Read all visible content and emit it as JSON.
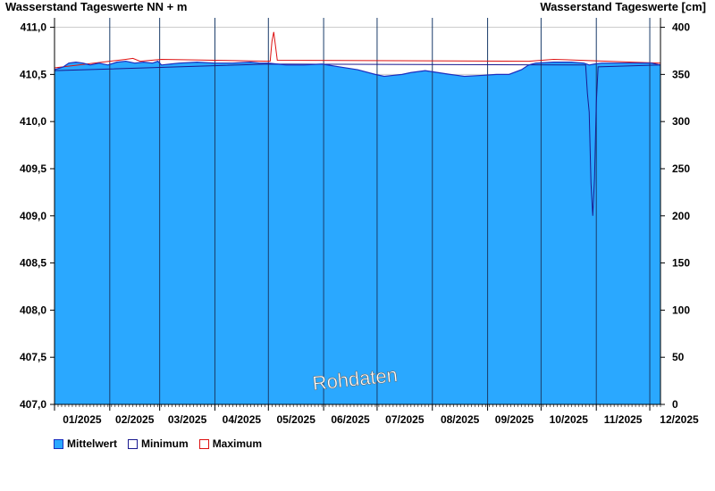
{
  "header": {
    "left_title": "Wasserstand Tageswerte NN + m",
    "right_title": "Wasserstand Tageswerte [cm]"
  },
  "watermark": "Rohdaten",
  "colors": {
    "fill": "#2aa8ff",
    "mean_line": "#1a2dbf",
    "minimum": "#1a1a8f",
    "maximum": "#dd1111",
    "grid": "#1a3c6a",
    "axis": "#000000"
  },
  "legend": [
    {
      "label": "Mittelwert",
      "key": "mean"
    },
    {
      "label": "Minimum",
      "key": "minimum"
    },
    {
      "label": "Maximum",
      "key": "maximum"
    }
  ],
  "chart_data": {
    "type": "area",
    "y_left": {
      "range": [
        407.0,
        411.1
      ],
      "ticks": [
        407.0,
        407.5,
        408.0,
        408.5,
        409.0,
        409.5,
        410.0,
        410.5,
        411.0
      ],
      "tick_labels": [
        "407,0",
        "407,5",
        "408,0",
        "408,5",
        "409,0",
        "409,5",
        "410,0",
        "410,5",
        "411,0"
      ]
    },
    "y_right": {
      "ticks": [
        0,
        50,
        100,
        150,
        200,
        250,
        300,
        350,
        400
      ],
      "tick_labels": [
        "0",
        "50",
        "100",
        "150",
        "200",
        "250",
        "300",
        "350",
        "400"
      ]
    },
    "x_axis": {
      "months": [
        "01/2025",
        "02/2025",
        "03/2025",
        "04/2025",
        "05/2025",
        "06/2025",
        "07/2025",
        "08/2025",
        "09/2025",
        "10/2025",
        "11/2025",
        "12/2025"
      ],
      "month_starts": [
        0,
        31,
        59,
        90,
        120,
        151,
        181,
        212,
        243,
        273,
        304,
        334
      ],
      "x_range_days": [
        0,
        340
      ]
    },
    "series": [
      {
        "name": "Mittelwert",
        "points": [
          [
            0,
            410.55
          ],
          [
            5,
            410.58
          ],
          [
            8,
            410.62
          ],
          [
            12,
            410.63
          ],
          [
            16,
            410.62
          ],
          [
            20,
            410.6
          ],
          [
            25,
            410.62
          ],
          [
            30,
            410.6
          ],
          [
            35,
            410.63
          ],
          [
            40,
            410.64
          ],
          [
            45,
            410.62
          ],
          [
            50,
            410.63
          ],
          [
            55,
            410.62
          ],
          [
            58,
            410.64
          ],
          [
            60,
            410.6
          ],
          [
            65,
            410.61
          ],
          [
            70,
            410.62
          ],
          [
            80,
            410.63
          ],
          [
            90,
            410.62
          ],
          [
            100,
            410.62
          ],
          [
            110,
            410.63
          ],
          [
            115,
            410.62
          ],
          [
            120,
            410.62
          ],
          [
            125,
            410.61
          ],
          [
            130,
            410.6
          ],
          [
            140,
            410.6
          ],
          [
            150,
            410.61
          ],
          [
            160,
            410.58
          ],
          [
            170,
            410.55
          ],
          [
            180,
            410.5
          ],
          [
            185,
            410.48
          ],
          [
            190,
            410.49
          ],
          [
            195,
            410.5
          ],
          [
            200,
            410.52
          ],
          [
            208,
            410.54
          ],
          [
            215,
            410.52
          ],
          [
            222,
            410.5
          ],
          [
            230,
            410.48
          ],
          [
            240,
            410.49
          ],
          [
            248,
            410.5
          ],
          [
            255,
            410.5
          ],
          [
            262,
            410.55
          ],
          [
            266,
            410.6
          ],
          [
            270,
            410.62
          ],
          [
            280,
            410.63
          ],
          [
            290,
            410.63
          ],
          [
            297,
            410.62
          ],
          [
            300,
            410.6
          ],
          [
            303,
            410.61
          ],
          [
            307,
            410.62
          ],
          [
            315,
            410.62
          ],
          [
            325,
            410.62
          ],
          [
            335,
            410.62
          ],
          [
            340,
            410.6
          ]
        ]
      },
      {
        "name": "Minimum",
        "points": [
          [
            0,
            410.54
          ],
          [
            120,
            410.61
          ],
          [
            298,
            410.6
          ],
          [
            299,
            410.3
          ],
          [
            300,
            410.1
          ],
          [
            301,
            409.35
          ],
          [
            302,
            409.0
          ],
          [
            303,
            409.4
          ],
          [
            304,
            410.2
          ],
          [
            305,
            410.58
          ],
          [
            340,
            410.6
          ]
        ]
      },
      {
        "name": "Maximum",
        "points": [
          [
            0,
            410.57
          ],
          [
            40,
            410.66
          ],
          [
            44,
            410.67
          ],
          [
            48,
            410.64
          ],
          [
            60,
            410.66
          ],
          [
            121,
            410.64
          ],
          [
            122,
            410.85
          ],
          [
            123,
            410.95
          ],
          [
            124,
            410.8
          ],
          [
            125,
            410.65
          ],
          [
            266,
            410.64
          ],
          [
            280,
            410.66
          ],
          [
            340,
            410.62
          ]
        ]
      }
    ]
  }
}
